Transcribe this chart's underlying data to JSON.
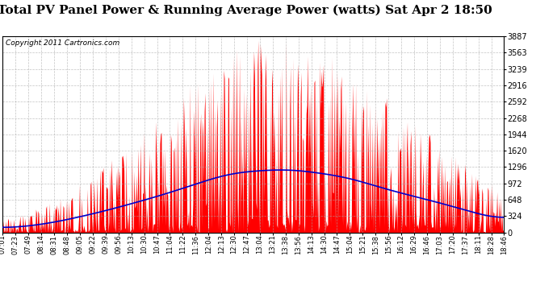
{
  "title": "Total PV Panel Power & Running Average Power (watts) Sat Apr 2 18:50",
  "copyright_text": "Copyright 2011 Cartronics.com",
  "ylabel_right_ticks": [
    0.0,
    323.9,
    647.9,
    971.8,
    1295.8,
    1619.7,
    1943.6,
    2267.6,
    2591.5,
    2915.5,
    3239.4,
    3563.3,
    3887.3
  ],
  "ymax": 3887.3,
  "ymin": 0.0,
  "x_tick_labels": [
    "07:01",
    "07:23",
    "07:49",
    "08:14",
    "08:31",
    "08:48",
    "09:05",
    "09:22",
    "09:39",
    "09:56",
    "10:13",
    "10:30",
    "10:47",
    "11:04",
    "11:22",
    "11:36",
    "12:04",
    "12:13",
    "12:30",
    "12:47",
    "13:04",
    "13:21",
    "13:38",
    "13:56",
    "14:13",
    "14:30",
    "14:47",
    "15:04",
    "15:21",
    "15:38",
    "15:56",
    "16:12",
    "16:29",
    "16:46",
    "17:03",
    "17:20",
    "17:37",
    "18:11",
    "18:28",
    "18:46"
  ],
  "bg_color": "#ffffff",
  "plot_bg_color": "#ffffff",
  "grid_color": "#aaaaaa",
  "bar_color": "#ff0000",
  "line_color": "#0000cc",
  "title_fontsize": 11,
  "copyright_fontsize": 6.5,
  "figwidth": 6.9,
  "figheight": 3.75,
  "dpi": 100
}
